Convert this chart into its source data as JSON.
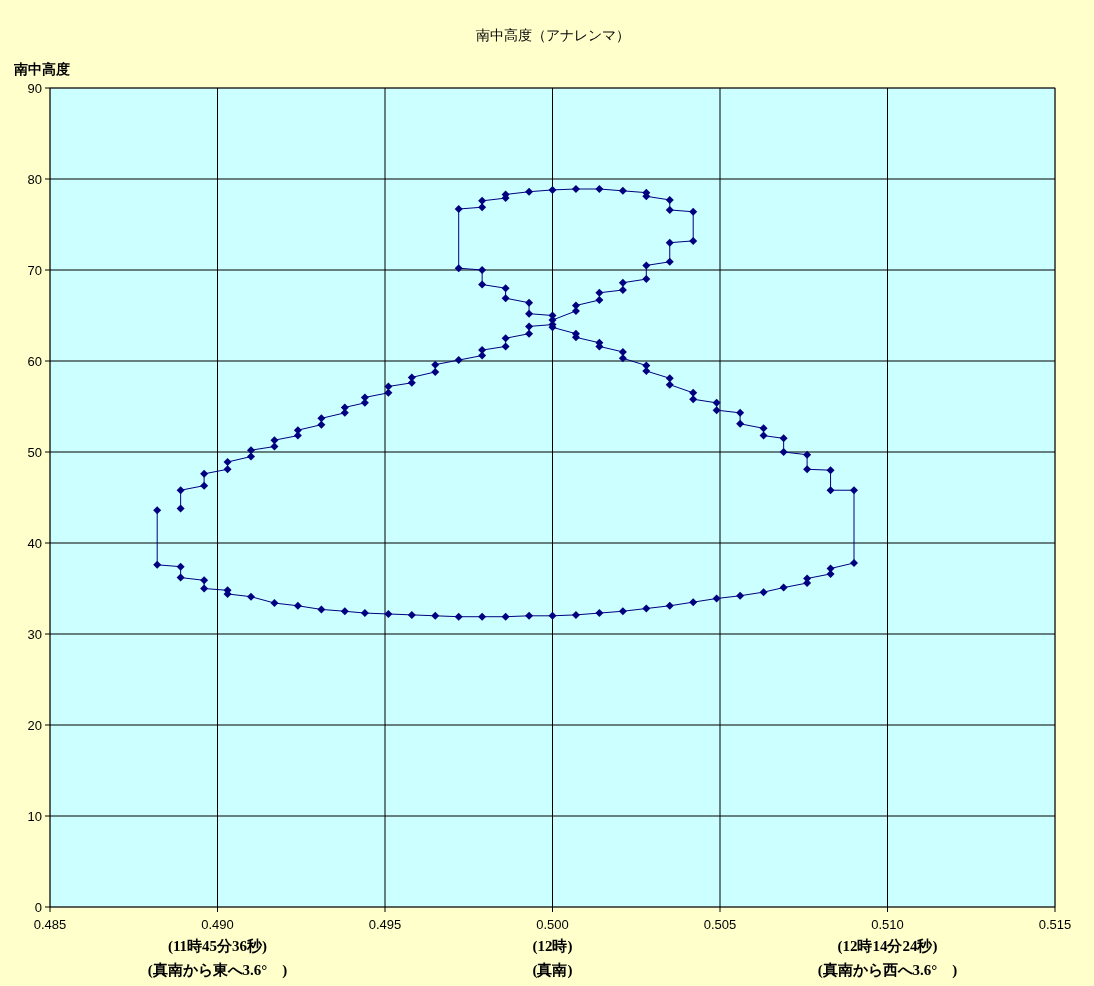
{
  "chart_data": {
    "type": "line",
    "title": "南中高度（アナレンマ）",
    "ylabel": "南中高度",
    "xlim": [
      0.485,
      0.515
    ],
    "xticks": [
      {
        "value": 0.485,
        "label": "0.485"
      },
      {
        "value": 0.49,
        "label": "0.490\n(11時45分36秒)\n(真南から東へ3.6°　)"
      },
      {
        "value": 0.495,
        "label": "0.495"
      },
      {
        "value": 0.5,
        "label": "0.500\n(12時)\n(真南)"
      },
      {
        "value": 0.505,
        "label": "0.505"
      },
      {
        "value": 0.51,
        "label": "0.510\n(12時14分24秒)\n(真南から西へ3.6°　)"
      },
      {
        "value": 0.515,
        "label": "0.515"
      }
    ],
    "ylim": [
      0,
      90
    ],
    "yticks": [
      0,
      10,
      20,
      30,
      40,
      50,
      60,
      70,
      80,
      90
    ],
    "grid": true,
    "marker": "diamond",
    "line_style": "solid",
    "series": [
      {
        "color": "#000080",
        "x": [
          0.4882,
          0.4882,
          0.4889,
          0.4889,
          0.4896,
          0.4896,
          0.4903,
          0.4903,
          0.491,
          0.4917,
          0.4924,
          0.4931,
          0.4938,
          0.4944,
          0.4951,
          0.4958,
          0.4965,
          0.4972,
          0.4979,
          0.4986,
          0.4993,
          0.5,
          0.5007,
          0.5014,
          0.5021,
          0.5028,
          0.5035,
          0.5042,
          0.5049,
          0.5056,
          0.5063,
          0.5069,
          0.5076,
          0.5076,
          0.5083,
          0.5083,
          0.509,
          0.509,
          0.5083,
          0.5083,
          0.5076,
          0.5076,
          0.5069,
          0.5069,
          0.5063,
          0.5063,
          0.5056,
          0.5056,
          0.5049,
          0.5049,
          0.5042,
          0.5042,
          0.5035,
          0.5035,
          0.5028,
          0.5028,
          0.5021,
          0.5021,
          0.5014,
          0.5014,
          0.5007,
          0.5007,
          0.5,
          0.5,
          0.5007,
          0.5007,
          0.5014,
          0.5014,
          0.5021,
          0.5021,
          0.5028,
          0.5028,
          0.5035,
          0.5035,
          0.5042,
          0.5042,
          0.5035,
          0.5035,
          0.5028,
          0.5028,
          0.5021,
          0.5014,
          0.5007,
          0.5,
          0.4993,
          0.4986,
          0.4986,
          0.4979,
          0.4979,
          0.4972,
          0.4972,
          0.4979,
          0.4979,
          0.4986,
          0.4986,
          0.4993,
          0.4993,
          0.5,
          0.5,
          0.4993,
          0.4993,
          0.4986,
          0.4986,
          0.4979,
          0.4979,
          0.4972,
          0.4965,
          0.4965,
          0.4958,
          0.4958,
          0.4951,
          0.4951,
          0.4944,
          0.4944,
          0.4938,
          0.4938,
          0.4931,
          0.4931,
          0.4924,
          0.4924,
          0.4917,
          0.4917,
          0.491,
          0.491,
          0.4903,
          0.4903,
          0.4896,
          0.4896,
          0.4889,
          0.4889
        ],
        "values": [
          43.6,
          37.6,
          37.4,
          36.2,
          35.9,
          35.0,
          34.8,
          34.4,
          34.1,
          33.4,
          33.1,
          32.7,
          32.5,
          32.3,
          32.2,
          32.1,
          32.0,
          31.9,
          31.9,
          31.9,
          32.0,
          32.0,
          32.1,
          32.3,
          32.5,
          32.8,
          33.1,
          33.5,
          33.9,
          34.2,
          34.6,
          35.1,
          35.6,
          36.1,
          36.6,
          37.2,
          37.8,
          45.8,
          45.8,
          48.0,
          48.1,
          49.7,
          50.0,
          51.5,
          51.8,
          52.6,
          53.1,
          54.3,
          54.6,
          55.4,
          55.8,
          56.5,
          57.4,
          58.1,
          58.9,
          59.5,
          60.3,
          61.0,
          61.6,
          62.0,
          62.6,
          63.0,
          63.7,
          64.5,
          65.5,
          66.1,
          66.7,
          67.5,
          67.8,
          68.6,
          69.0,
          70.5,
          70.9,
          73.0,
          73.2,
          76.4,
          76.6,
          77.7,
          78.1,
          78.5,
          78.7,
          78.9,
          78.9,
          78.8,
          78.6,
          78.3,
          77.9,
          77.6,
          76.9,
          76.7,
          70.2,
          70.0,
          68.4,
          68.0,
          66.9,
          66.4,
          65.2,
          65.0,
          64.0,
          63.8,
          63.0,
          62.5,
          61.6,
          61.2,
          60.6,
          60.1,
          59.6,
          58.8,
          58.2,
          57.6,
          57.2,
          56.5,
          56.0,
          55.4,
          54.9,
          54.3,
          53.7,
          53.0,
          52.4,
          51.8,
          51.3,
          50.6,
          50.2,
          49.5,
          48.9,
          48.1,
          47.6,
          46.3,
          45.8,
          43.8
        ]
      }
    ]
  }
}
